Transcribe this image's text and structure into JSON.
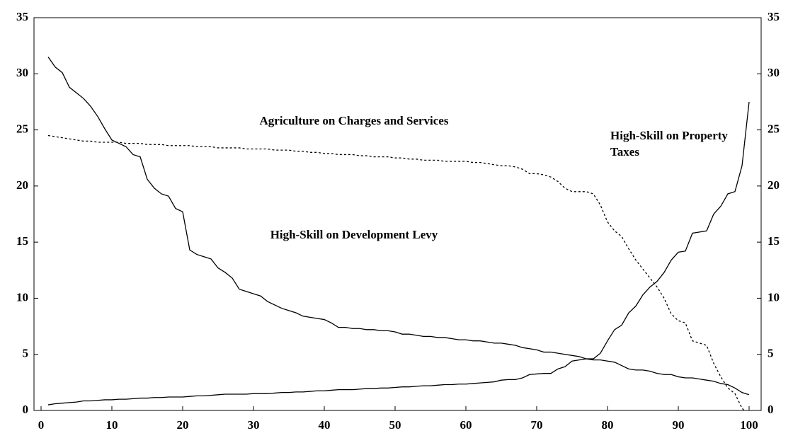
{
  "chart_data": {
    "type": "line",
    "x": [
      1,
      2,
      3,
      4,
      5,
      6,
      7,
      8,
      9,
      10,
      11,
      12,
      13,
      14,
      15,
      16,
      17,
      18,
      19,
      20,
      21,
      22,
      23,
      24,
      25,
      26,
      27,
      28,
      29,
      30,
      31,
      32,
      33,
      34,
      35,
      36,
      37,
      38,
      39,
      40,
      41,
      42,
      43,
      44,
      45,
      46,
      47,
      48,
      49,
      50,
      51,
      52,
      53,
      54,
      55,
      56,
      57,
      58,
      59,
      60,
      61,
      62,
      63,
      64,
      65,
      66,
      67,
      68,
      69,
      70,
      71,
      72,
      73,
      74,
      75,
      76,
      77,
      78,
      79,
      80,
      81,
      82,
      83,
      84,
      85,
      86,
      87,
      88,
      89,
      90,
      91,
      92,
      93,
      94,
      95,
      96,
      97,
      98,
      99,
      100
    ],
    "series": [
      {
        "name": "High-Skill on Development Levy",
        "color": "#000000",
        "dash": "solid",
        "values": [
          31.5,
          30.6,
          30.1,
          28.8,
          28.3,
          27.8,
          27.1,
          26.2,
          25.1,
          24.1,
          23.8,
          23.5,
          22.8,
          22.6,
          20.6,
          19.8,
          19.3,
          19.1,
          18.0,
          17.7,
          14.3,
          13.9,
          13.7,
          13.5,
          12.7,
          12.3,
          11.8,
          10.8,
          10.6,
          10.4,
          10.2,
          9.7,
          9.4,
          9.1,
          8.9,
          8.7,
          8.4,
          8.3,
          8.2,
          8.1,
          7.8,
          7.4,
          7.4,
          7.3,
          7.3,
          7.2,
          7.2,
          7.1,
          7.1,
          7.0,
          6.8,
          6.8,
          6.7,
          6.6,
          6.6,
          6.5,
          6.5,
          6.4,
          6.3,
          6.3,
          6.2,
          6.2,
          6.1,
          6.0,
          6.0,
          5.9,
          5.8,
          5.6,
          5.5,
          5.4,
          5.2,
          5.2,
          5.1,
          5.0,
          4.9,
          4.8,
          4.6,
          4.5,
          4.5,
          4.4,
          4.3,
          4.0,
          3.7,
          3.6,
          3.6,
          3.5,
          3.3,
          3.2,
          3.2,
          3.0,
          2.9,
          2.9,
          2.8,
          2.7,
          2.6,
          2.4,
          2.3,
          2.0,
          1.6,
          1.4
        ]
      },
      {
        "name": "High-Skill on Property Taxes",
        "color": "#000000",
        "dash": "solid",
        "values": [
          0.5,
          0.6,
          0.65,
          0.7,
          0.75,
          0.85,
          0.85,
          0.9,
          0.95,
          0.95,
          1.0,
          1.0,
          1.05,
          1.1,
          1.1,
          1.15,
          1.15,
          1.2,
          1.2,
          1.2,
          1.25,
          1.3,
          1.3,
          1.35,
          1.4,
          1.45,
          1.45,
          1.45,
          1.45,
          1.5,
          1.5,
          1.5,
          1.55,
          1.6,
          1.6,
          1.65,
          1.65,
          1.7,
          1.75,
          1.75,
          1.8,
          1.85,
          1.85,
          1.85,
          1.9,
          1.95,
          1.95,
          2.0,
          2.0,
          2.05,
          2.1,
          2.1,
          2.15,
          2.2,
          2.2,
          2.25,
          2.3,
          2.3,
          2.35,
          2.35,
          2.4,
          2.45,
          2.5,
          2.55,
          2.7,
          2.75,
          2.75,
          2.9,
          3.2,
          3.25,
          3.3,
          3.3,
          3.7,
          3.9,
          4.4,
          4.5,
          4.6,
          4.6,
          5.1,
          6.2,
          7.2,
          7.6,
          8.7,
          9.3,
          10.3,
          11.0,
          11.5,
          12.3,
          13.4,
          14.1,
          14.2,
          15.8,
          15.9,
          16.0,
          17.5,
          18.2,
          19.3,
          19.5,
          21.8,
          27.5
        ]
      },
      {
        "name": "Agriculture on Charges and Services",
        "color": "#000000",
        "dash": "dotted",
        "values": [
          24.5,
          24.4,
          24.3,
          24.2,
          24.1,
          24.0,
          24.0,
          23.9,
          23.9,
          23.9,
          23.9,
          23.8,
          23.8,
          23.8,
          23.7,
          23.7,
          23.7,
          23.6,
          23.6,
          23.6,
          23.6,
          23.5,
          23.5,
          23.5,
          23.4,
          23.4,
          23.4,
          23.4,
          23.3,
          23.3,
          23.3,
          23.3,
          23.2,
          23.2,
          23.2,
          23.1,
          23.1,
          23.0,
          23.0,
          22.9,
          22.9,
          22.8,
          22.8,
          22.8,
          22.7,
          22.7,
          22.6,
          22.6,
          22.6,
          22.5,
          22.5,
          22.4,
          22.4,
          22.3,
          22.3,
          22.3,
          22.2,
          22.2,
          22.2,
          22.2,
          22.1,
          22.1,
          22.0,
          21.9,
          21.8,
          21.8,
          21.7,
          21.5,
          21.1,
          21.1,
          21.0,
          20.8,
          20.4,
          19.8,
          19.5,
          19.5,
          19.5,
          19.3,
          18.3,
          16.8,
          16.0,
          15.5,
          14.4,
          13.4,
          12.6,
          11.8,
          11.0,
          10.0,
          8.6,
          8.0,
          7.8,
          6.2,
          6.0,
          5.8,
          4.2,
          3.0,
          2.0,
          1.5,
          0.2,
          -0.5
        ]
      }
    ],
    "xlim": [
      -1,
      101.7
    ],
    "xticks": [
      0,
      10,
      20,
      30,
      40,
      50,
      60,
      70,
      80,
      90,
      100
    ],
    "ylim": [
      0,
      35
    ],
    "yticks": [
      0,
      5,
      10,
      15,
      20,
      25,
      30,
      35
    ],
    "y2lim": [
      0,
      35
    ],
    "y2ticks": [
      0,
      5,
      10,
      15,
      20,
      25,
      30,
      35
    ],
    "grid": false
  }
}
